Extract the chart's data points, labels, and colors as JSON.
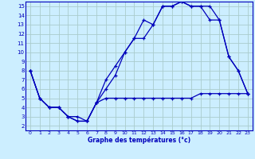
{
  "xlabel": "Graphe des températures (°c)",
  "bg_color": "#cceeff",
  "grid_color": "#aacccc",
  "line_color": "#0000bb",
  "xlim": [
    -0.5,
    23.5
  ],
  "ylim": [
    1.5,
    15.5
  ],
  "xticks": [
    0,
    1,
    2,
    3,
    4,
    5,
    6,
    7,
    8,
    9,
    10,
    11,
    12,
    13,
    14,
    15,
    16,
    17,
    18,
    19,
    20,
    21,
    22,
    23
  ],
  "yticks": [
    2,
    3,
    4,
    5,
    6,
    7,
    8,
    9,
    10,
    11,
    12,
    13,
    14,
    15
  ],
  "line1_x": [
    0,
    1,
    2,
    3,
    4,
    5,
    6,
    7,
    8,
    9,
    10,
    11,
    12,
    13,
    14,
    15,
    16,
    17,
    18,
    19,
    20,
    21,
    22,
    23
  ],
  "line1_y": [
    8,
    5,
    4,
    4,
    3,
    2.5,
    2.5,
    4.5,
    7,
    8.5,
    10,
    11.5,
    13.5,
    13,
    15,
    15,
    15.5,
    15,
    15,
    15,
    13.5,
    9.5,
    8,
    5.5
  ],
  "line2_x": [
    0,
    1,
    2,
    3,
    4,
    5,
    6,
    7,
    8,
    9,
    10,
    11,
    12,
    13,
    14,
    15,
    16,
    17,
    18,
    19,
    20,
    21,
    22,
    23
  ],
  "line2_y": [
    8,
    5,
    4,
    4,
    3,
    2.5,
    2.5,
    4.5,
    6,
    7.5,
    10,
    11.5,
    11.5,
    13,
    15,
    15,
    15.5,
    15,
    15,
    13.5,
    13.5,
    9.5,
    8,
    5.5
  ],
  "line3_x": [
    0,
    1,
    2,
    3,
    4,
    5,
    6,
    7,
    8,
    9,
    10,
    11,
    12,
    13,
    14,
    15,
    16,
    17,
    18,
    19,
    20,
    21,
    22,
    23
  ],
  "line3_y": [
    8,
    5,
    4,
    4,
    3,
    3,
    2.5,
    4.5,
    5,
    5,
    5,
    5,
    5,
    5,
    5,
    5,
    5,
    5,
    5.5,
    5.5,
    5.5,
    5.5,
    5.5,
    5.5
  ]
}
